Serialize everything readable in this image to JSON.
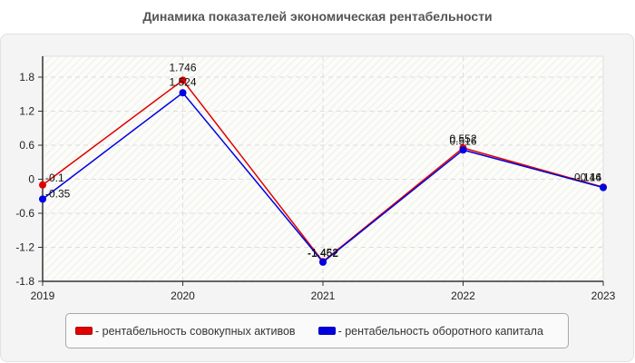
{
  "title": "Динамика показателей экономическая рентабельности",
  "legend": {
    "items": [
      {
        "label": "- рентабельность совокупных активов",
        "color": "#e00000"
      },
      {
        "label": "- рентабельность оборотного капитала",
        "color": "#0000e0"
      }
    ]
  },
  "chart_data": {
    "type": "line",
    "title": "Динамика показателей экономическая рентабельности",
    "xlabel": "",
    "ylabel": "",
    "categories": [
      "2019",
      "2020",
      "2021",
      "2022",
      "2023"
    ],
    "series": [
      {
        "name": "рентабельность совокупных активов",
        "color": "#e00000",
        "values": [
          -0.1,
          1.746,
          -1.452,
          0.552,
          -0.14
        ],
        "labels": [
          "-0.1",
          "1.746",
          "-1.452",
          "0.552",
          "-0.14"
        ]
      },
      {
        "name": "рентабельность оборотного капитала",
        "color": "#0000e0",
        "values": [
          -0.35,
          1.524,
          -1.462,
          0.516,
          -0.146
        ],
        "labels": [
          "-0.35",
          "1.524",
          "-1.462",
          "0.516",
          "-0.146"
        ]
      }
    ],
    "yticks": [
      1.8,
      1.2,
      0.6,
      0,
      -0.6,
      -1.2,
      -1.8
    ],
    "ytick_labels": [
      "1.8",
      "1.2",
      "0.6",
      "0",
      "-0.6",
      "-1.2",
      "-1.8"
    ],
    "ylim": [
      -1.8,
      2.16
    ],
    "grid": true,
    "legend_position": "bottom"
  }
}
